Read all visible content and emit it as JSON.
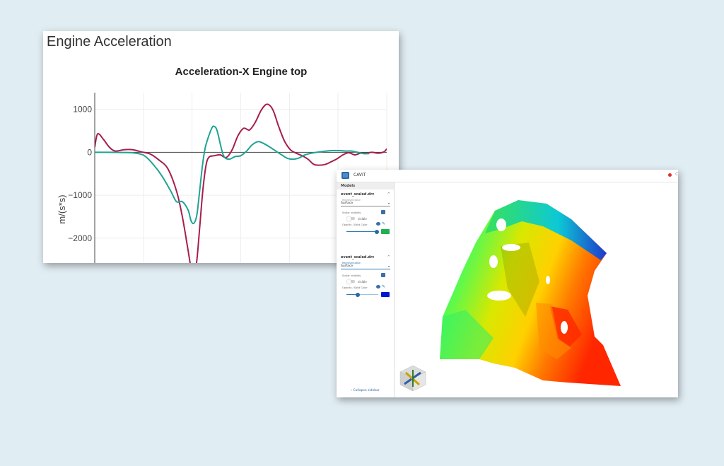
{
  "chart_card": {
    "title": "Engine Acceleration",
    "chart_data": {
      "type": "line",
      "title": "Acceleration-X Engine top",
      "ylabel": "m/(s*s)",
      "xlabel": "",
      "ylim": [
        -2580,
        1390
      ],
      "xlim": [
        0,
        100
      ],
      "yticks": [
        1000,
        0,
        -1000,
        -2000
      ],
      "ytick_labels": [
        "1000",
        "0",
        "−1000",
        "−2000"
      ],
      "grid": true,
      "series": [
        {
          "color": "#a61e4d",
          "points": [
            [
              0,
              120
            ],
            [
              1,
              430
            ],
            [
              3,
              300
            ],
            [
              5,
              120
            ],
            [
              7,
              30
            ],
            [
              10,
              60
            ],
            [
              13,
              60
            ],
            [
              16,
              10
            ],
            [
              19,
              -40
            ],
            [
              22,
              -180
            ],
            [
              25,
              -380
            ],
            [
              28,
              -900
            ],
            [
              30,
              -1500
            ],
            [
              32,
              -2300
            ],
            [
              33,
              -2700
            ],
            [
              34,
              -2900
            ],
            [
              35,
              -2500
            ],
            [
              36,
              -1700
            ],
            [
              37,
              -900
            ],
            [
              38,
              -350
            ],
            [
              39,
              -120
            ],
            [
              41,
              -80
            ],
            [
              43,
              -60
            ],
            [
              45,
              -120
            ],
            [
              47,
              50
            ],
            [
              49,
              380
            ],
            [
              51,
              560
            ],
            [
              53,
              520
            ],
            [
              55,
              700
            ],
            [
              57,
              980
            ],
            [
              59,
              1120
            ],
            [
              61,
              990
            ],
            [
              63,
              600
            ],
            [
              65,
              260
            ],
            [
              67,
              60
            ],
            [
              69,
              -20
            ],
            [
              71,
              -80
            ],
            [
              73,
              -160
            ],
            [
              75,
              -280
            ],
            [
              77,
              -300
            ],
            [
              79,
              -280
            ],
            [
              81,
              -220
            ],
            [
              83,
              -150
            ],
            [
              85,
              -60
            ],
            [
              87,
              -10
            ],
            [
              89,
              -60
            ],
            [
              91,
              -20
            ],
            [
              93,
              -20
            ],
            [
              95,
              0
            ],
            [
              97,
              -20
            ],
            [
              99,
              10
            ],
            [
              100,
              80
            ]
          ]
        },
        {
          "color": "#1fa396",
          "points": [
            [
              0,
              0
            ],
            [
              5,
              0
            ],
            [
              10,
              -5
            ],
            [
              14,
              -20
            ],
            [
              17,
              -80
            ],
            [
              20,
              -280
            ],
            [
              23,
              -550
            ],
            [
              26,
              -900
            ],
            [
              28,
              -1150
            ],
            [
              30,
              -1150
            ],
            [
              32,
              -1350
            ],
            [
              33,
              -1600
            ],
            [
              34,
              -1650
            ],
            [
              35,
              -1450
            ],
            [
              36,
              -850
            ],
            [
              37,
              -250
            ],
            [
              38,
              150
            ],
            [
              40,
              550
            ],
            [
              41,
              600
            ],
            [
              42,
              480
            ],
            [
              44,
              -60
            ],
            [
              46,
              -160
            ],
            [
              48,
              -100
            ],
            [
              50,
              -80
            ],
            [
              52,
              30
            ],
            [
              54,
              180
            ],
            [
              56,
              250
            ],
            [
              58,
              200
            ],
            [
              60,
              120
            ],
            [
              62,
              30
            ],
            [
              64,
              -60
            ],
            [
              66,
              -140
            ],
            [
              68,
              -160
            ],
            [
              70,
              -130
            ],
            [
              72,
              -60
            ],
            [
              75,
              -10
            ],
            [
              78,
              20
            ],
            [
              81,
              40
            ],
            [
              84,
              40
            ],
            [
              86,
              30
            ],
            [
              88,
              30
            ],
            [
              90,
              0
            ],
            [
              92,
              -30
            ],
            [
              94,
              -30
            ]
          ]
        }
      ]
    }
  },
  "cavit": {
    "app_title": "CAVIT",
    "close_label": "Cl",
    "models_header": "Models",
    "collapse_label": "Collapse sidebar",
    "icons": {
      "logo": "cavit-logo-icon",
      "scalar": "palette-icon",
      "eye": "eye-icon",
      "pencil": "pencil-icon",
      "chevron": "chevron-left-icon"
    },
    "models": [
      {
        "name": "event_scaled.drc",
        "representation_label": "Representation",
        "representation": "Surface",
        "scalar_label": "Scalar visibility",
        "visible_label": "visible",
        "opacity_label": "Opacity / Solid Color",
        "opacity": 0.95,
        "color": "#1fb054"
      },
      {
        "name": "event_scaled.drc",
        "representation_label": "Representation",
        "representation": "Surface",
        "scalar_label": "Scalar visibility",
        "visible_label": "visible",
        "opacity_label": "Opacity / Solid Color",
        "opacity": 0.35,
        "color": "#0018d6"
      }
    ]
  }
}
